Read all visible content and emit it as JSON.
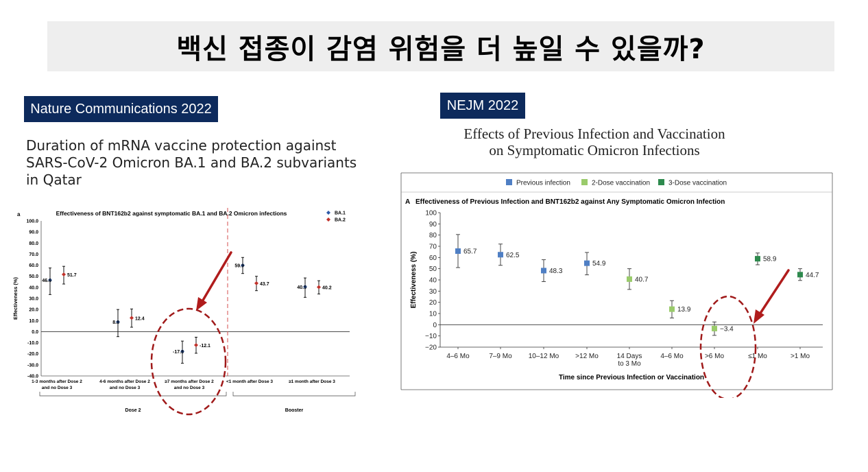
{
  "title": "백신 접종이 감염 위험을 더 높일 수 있을까?",
  "left": {
    "badge": "Nature Communications 2022",
    "heading_lines": [
      "Duration of mRNA vaccine protection against",
      "SARS-CoV-2 Omicron BA.1 and BA.2 subvariants",
      "in Qatar"
    ]
  },
  "right": {
    "badge": "NEJM 2022",
    "heading_lines": [
      "Effects of Previous Infection and Vaccination",
      "on Symptomatic Omicron Infections"
    ]
  },
  "chart_data": [
    {
      "type": "scatter",
      "panel_label": "a",
      "title": "Effectiveness of BNT162b2 against symptomatic BA.1 and BA.2 Omicron infections",
      "ylabel": "Effectiveness (%)",
      "xlabel": "",
      "ylim": [
        -40,
        100
      ],
      "yticks": [
        "100.0",
        "90.0",
        "80.0",
        "70.0",
        "60.0",
        "50.0",
        "40.0",
        "30.0",
        "20.0",
        "10.0",
        "0.0",
        "-10.0",
        "-20.0",
        "-30.0",
        "-40.0"
      ],
      "legend_position": "top-right",
      "categories": [
        [
          "1-3 months after Dose 2",
          "and no Dose 3"
        ],
        [
          "4-6 months after Dose 2",
          "and no Dose 3"
        ],
        [
          "≥7 months after Dose 2",
          "and no Dose 3"
        ],
        [
          "<1 month after Dose 3"
        ],
        [
          "≥1 month after Dose 3"
        ]
      ],
      "groups": [
        {
          "label": "Dose 2",
          "categories": [
            0,
            1,
            2
          ]
        },
        {
          "label": "Booster",
          "categories": [
            3,
            4
          ]
        }
      ],
      "series": [
        {
          "name": "BA.1",
          "color": "#2e5aa8",
          "marker": "diamond",
          "values": [
            46.6,
            8.8,
            -17.8,
            59.9,
            40.5
          ],
          "labels": [
            "46.6",
            "8.8",
            "-17.8",
            "59.9",
            "40.5"
          ],
          "ci_low": [
            33.5,
            -4.5,
            -28.5,
            52.5,
            31
          ],
          "ci_high": [
            57.5,
            20,
            -8.5,
            67,
            48.5
          ]
        },
        {
          "name": "BA.2",
          "color": "#c0322b",
          "marker": "diamond",
          "values": [
            51.7,
            12.4,
            -12.1,
            43.7,
            40.2
          ],
          "labels": [
            "51.7",
            "12.4",
            "-12.1",
            "43.7",
            "40.2"
          ],
          "ci_low": [
            43,
            4,
            -19.5,
            37,
            34
          ],
          "ci_high": [
            59,
            20.5,
            -5,
            50,
            46
          ]
        }
      ],
      "annotations": [
        "red-arrow",
        "red-dashed-circle"
      ]
    },
    {
      "type": "scatter",
      "panel_label": "A",
      "title": "Effectiveness of Previous Infection and BNT162b2 against Any Symptomatic Omicron Infection",
      "ylabel": "Effectiveness (%)",
      "xlabel": "Time since Previous Infection or Vaccination",
      "ylim": [
        -20,
        100
      ],
      "yticks": [
        "100",
        "90",
        "80",
        "70",
        "60",
        "50",
        "40",
        "30",
        "20",
        "10",
        "0",
        "−10",
        "−20"
      ],
      "legend_position": "top",
      "categories": [
        [
          "4–6 Mo"
        ],
        [
          "7–9 Mo"
        ],
        [
          "10–12 Mo"
        ],
        [
          ">12 Mo"
        ],
        [
          "14 Days",
          "to 3 Mo"
        ],
        [
          "4–6 Mo"
        ],
        [
          ">6 Mo"
        ],
        [
          "≤1 Mo"
        ],
        [
          ">1 Mo"
        ]
      ],
      "series": [
        {
          "name": "Previous infection",
          "color": "#4f7fc4",
          "marker": "square",
          "x": [
            0,
            1,
            2,
            3
          ],
          "values": [
            65.7,
            62.5,
            48.3,
            54.9
          ],
          "labels": [
            "65.7",
            "62.5",
            "48.3",
            "54.9"
          ],
          "ci_low": [
            51,
            53,
            38.5,
            44.5
          ],
          "ci_high": [
            80.5,
            72,
            58,
            64.5
          ]
        },
        {
          "name": "2-Dose vaccination",
          "color": "#9acb6b",
          "marker": "square",
          "x": [
            4,
            5,
            6
          ],
          "values": [
            40.7,
            13.9,
            -3.4
          ],
          "labels": [
            "40.7",
            "13.9",
            "−3.4"
          ],
          "ci_low": [
            31.5,
            6,
            -9.5
          ],
          "ci_high": [
            50,
            21.5,
            2.5
          ]
        },
        {
          "name": "3-Dose vaccination",
          "color": "#2e8a4e",
          "marker": "square",
          "x": [
            7,
            8
          ],
          "values": [
            58.9,
            44.7
          ],
          "labels": [
            "58.9",
            "44.7"
          ],
          "ci_low": [
            53.5,
            39.5
          ],
          "ci_high": [
            64,
            50
          ]
        }
      ],
      "annotations": [
        "red-arrow",
        "red-dashed-circle"
      ]
    }
  ]
}
